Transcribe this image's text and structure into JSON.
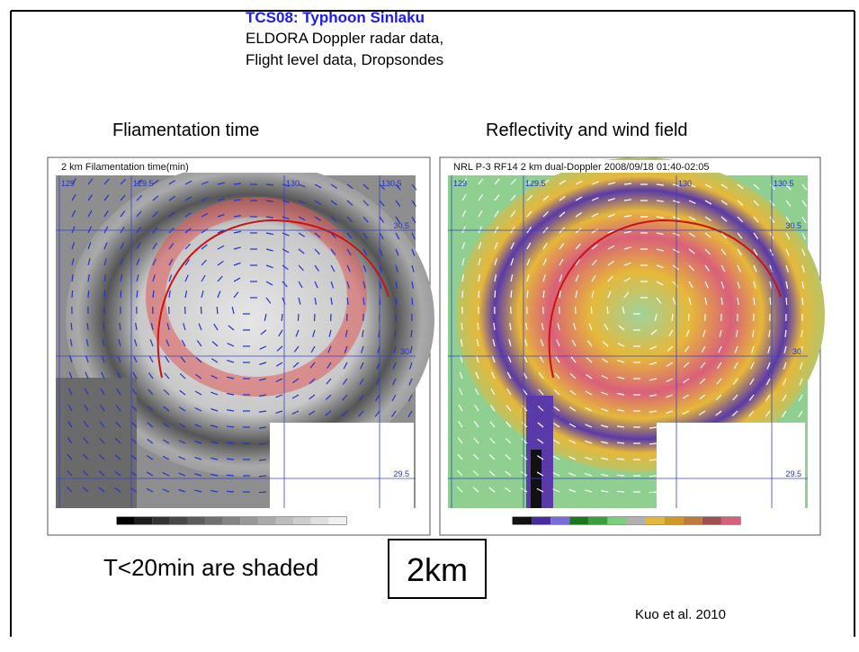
{
  "header": {
    "title": "TCS08: Typhoon Sinlaku",
    "lines": [
      "ELDORA Doppler radar data,",
      "Flight level data, Dropsondes"
    ]
  },
  "panels": [
    {
      "title": "Fliamentation time",
      "image_label": "2 km Filamentation time(min)",
      "lon_labels": [
        "129",
        "129.5",
        "130",
        "130.5"
      ],
      "lat_labels": [
        "30.5",
        "30",
        "29.5"
      ]
    },
    {
      "title": "Reflectivity and wind field",
      "image_label": "NRL P-3 RF14 2 km dual-Doppler 2008/09/18 01:40-02:05",
      "lon_labels": [
        "129",
        "129.5",
        "130",
        "130.5"
      ],
      "lat_labels": [
        "30.5",
        "30",
        "29.5"
      ]
    }
  ],
  "footer": {
    "note": "T<20min are shaded",
    "scale": "2km",
    "citation": "Kuo et al. 2010"
  }
}
